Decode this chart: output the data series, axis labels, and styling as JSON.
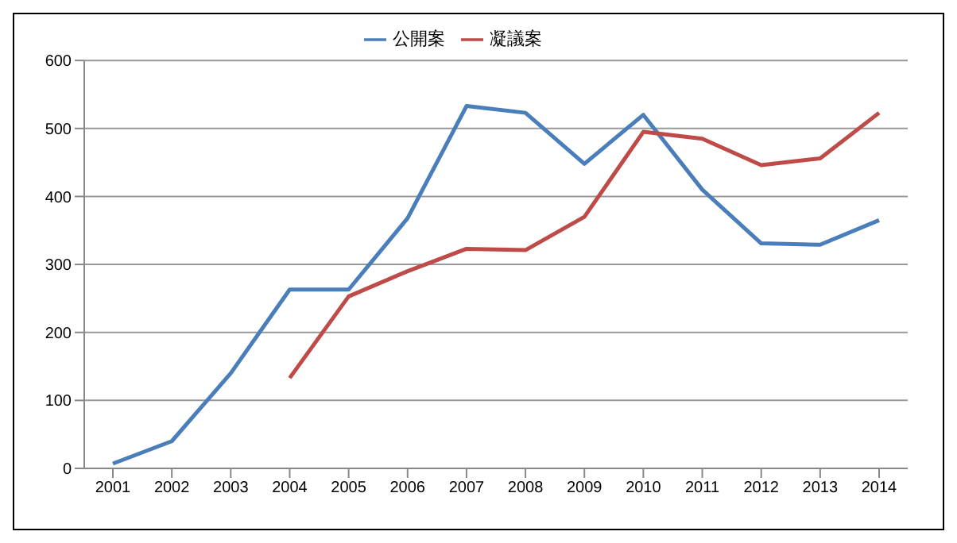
{
  "chart_data": {
    "type": "line",
    "categories": [
      "2001",
      "2002",
      "2003",
      "2004",
      "2005",
      "2006",
      "2007",
      "2008",
      "2009",
      "2010",
      "2011",
      "2012",
      "2013",
      "2014"
    ],
    "series": [
      {
        "name": "公開案",
        "color": "#4a7ebb",
        "values": [
          7,
          40,
          140,
          263,
          263,
          368,
          533,
          523,
          448,
          520,
          410,
          331,
          329,
          365
        ]
      },
      {
        "name": "凝議案",
        "color": "#be4b48",
        "values": [
          null,
          null,
          null,
          133,
          253,
          290,
          323,
          321,
          370,
          495,
          485,
          446,
          456,
          523
        ]
      }
    ],
    "ylim": [
      0,
      600
    ],
    "yticks": [
      0,
      100,
      200,
      300,
      400,
      500,
      600
    ],
    "grid": "y",
    "legend": "top",
    "marker": "none",
    "line_style": "solid"
  }
}
